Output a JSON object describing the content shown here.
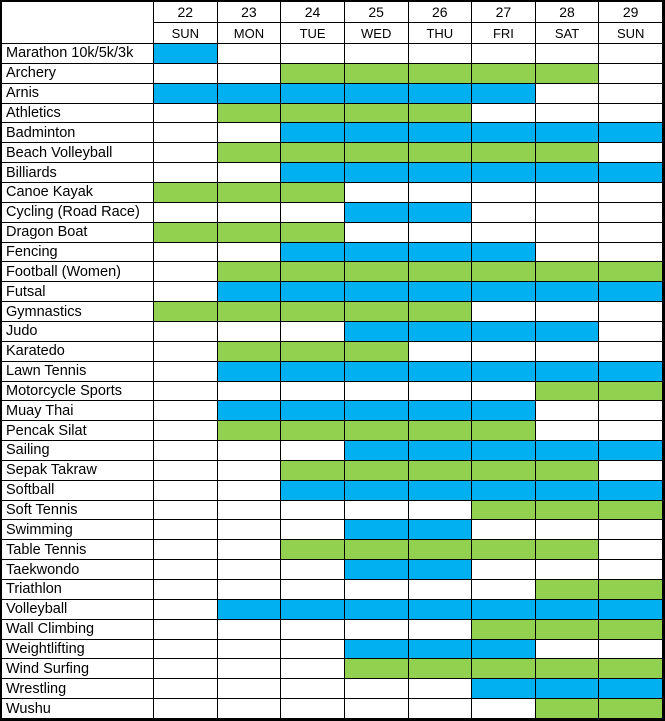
{
  "chart_data": {
    "type": "table",
    "title": "",
    "description_visible": false,
    "legend": "none",
    "colors": {
      "blue": "#00B0F0",
      "green": "#92D050",
      "empty": "#FFFFFF",
      "grid": "#000000"
    },
    "column_dates": [
      "22",
      "23",
      "24",
      "25",
      "26",
      "27",
      "28",
      "29"
    ],
    "column_days": [
      "SUN",
      "MON",
      "TUE",
      "WED",
      "THU",
      "FRI",
      "SAT",
      "SUN"
    ],
    "rows": [
      {
        "label": "Marathon 10k/5k/3k",
        "color": "blue",
        "cells": [
          1,
          0,
          0,
          0,
          0,
          0,
          0,
          0
        ]
      },
      {
        "label": "Archery",
        "color": "green",
        "cells": [
          0,
          0,
          1,
          1,
          1,
          1,
          1,
          0
        ]
      },
      {
        "label": "Arnis",
        "color": "blue",
        "cells": [
          1,
          1,
          1,
          1,
          1,
          1,
          0,
          0
        ]
      },
      {
        "label": "Athletics",
        "color": "green",
        "cells": [
          0,
          1,
          1,
          1,
          1,
          0,
          0,
          0
        ]
      },
      {
        "label": "Badminton",
        "color": "blue",
        "cells": [
          0,
          0,
          1,
          1,
          1,
          1,
          1,
          1
        ]
      },
      {
        "label": "Beach Volleyball",
        "color": "green",
        "cells": [
          0,
          1,
          1,
          1,
          1,
          1,
          1,
          0
        ]
      },
      {
        "label": "Billiards",
        "color": "blue",
        "cells": [
          0,
          0,
          1,
          1,
          1,
          1,
          1,
          1
        ]
      },
      {
        "label": "Canoe Kayak",
        "color": "green",
        "cells": [
          1,
          1,
          1,
          0,
          0,
          0,
          0,
          0
        ]
      },
      {
        "label": "Cycling (Road Race)",
        "color": "blue",
        "cells": [
          0,
          0,
          0,
          1,
          1,
          0,
          0,
          0
        ]
      },
      {
        "label": "Dragon Boat",
        "color": "green",
        "cells": [
          1,
          1,
          1,
          0,
          0,
          0,
          0,
          0
        ]
      },
      {
        "label": "Fencing",
        "color": "blue",
        "cells": [
          0,
          0,
          1,
          1,
          1,
          1,
          0,
          0
        ]
      },
      {
        "label": "Football (Women)",
        "color": "green",
        "cells": [
          0,
          1,
          1,
          1,
          1,
          1,
          1,
          1
        ]
      },
      {
        "label": "Futsal",
        "color": "blue",
        "cells": [
          0,
          1,
          1,
          1,
          1,
          1,
          1,
          1
        ]
      },
      {
        "label": "Gymnastics",
        "color": "green",
        "cells": [
          1,
          1,
          1,
          1,
          1,
          0,
          0,
          0
        ]
      },
      {
        "label": "Judo",
        "color": "blue",
        "cells": [
          0,
          0,
          0,
          1,
          1,
          1,
          1,
          0
        ]
      },
      {
        "label": "Karatedo",
        "color": "green",
        "cells": [
          0,
          1,
          1,
          1,
          0,
          0,
          0,
          0
        ]
      },
      {
        "label": "Lawn Tennis",
        "color": "blue",
        "cells": [
          0,
          1,
          1,
          1,
          1,
          1,
          1,
          1
        ]
      },
      {
        "label": "Motorcycle Sports",
        "color": "green",
        "cells": [
          0,
          0,
          0,
          0,
          0,
          0,
          1,
          1
        ]
      },
      {
        "label": "Muay Thai",
        "color": "blue",
        "cells": [
          0,
          1,
          1,
          1,
          1,
          1,
          0,
          0
        ]
      },
      {
        "label": "Pencak Silat",
        "color": "green",
        "cells": [
          0,
          1,
          1,
          1,
          1,
          1,
          0,
          0
        ]
      },
      {
        "label": "Sailing",
        "color": "blue",
        "cells": [
          0,
          0,
          0,
          1,
          1,
          1,
          1,
          1
        ]
      },
      {
        "label": "Sepak Takraw",
        "color": "green",
        "cells": [
          0,
          0,
          1,
          1,
          1,
          1,
          1,
          0
        ]
      },
      {
        "label": "Softball",
        "color": "blue",
        "cells": [
          0,
          0,
          1,
          1,
          1,
          1,
          1,
          1
        ]
      },
      {
        "label": "Soft Tennis",
        "color": "green",
        "cells": [
          0,
          0,
          0,
          0,
          0,
          1,
          1,
          1
        ]
      },
      {
        "label": "Swimming",
        "color": "blue",
        "cells": [
          0,
          0,
          0,
          1,
          1,
          0,
          0,
          0
        ]
      },
      {
        "label": "Table Tennis",
        "color": "green",
        "cells": [
          0,
          0,
          1,
          1,
          1,
          1,
          1,
          0
        ]
      },
      {
        "label": "Taekwondo",
        "color": "blue",
        "cells": [
          0,
          0,
          0,
          1,
          1,
          0,
          0,
          0
        ]
      },
      {
        "label": "Triathlon",
        "color": "green",
        "cells": [
          0,
          0,
          0,
          0,
          0,
          0,
          1,
          1
        ]
      },
      {
        "label": "Volleyball",
        "color": "blue",
        "cells": [
          0,
          1,
          1,
          1,
          1,
          1,
          1,
          1
        ]
      },
      {
        "label": "Wall Climbing",
        "color": "green",
        "cells": [
          0,
          0,
          0,
          0,
          0,
          1,
          1,
          1
        ]
      },
      {
        "label": "Weightlifting",
        "color": "blue",
        "cells": [
          0,
          0,
          0,
          1,
          1,
          1,
          0,
          0
        ]
      },
      {
        "label": "Wind Surfing",
        "color": "green",
        "cells": [
          0,
          0,
          0,
          1,
          1,
          1,
          1,
          1
        ]
      },
      {
        "label": "Wrestling",
        "color": "blue",
        "cells": [
          0,
          0,
          0,
          0,
          0,
          1,
          1,
          1
        ]
      },
      {
        "label": "Wushu",
        "color": "green",
        "cells": [
          0,
          0,
          0,
          0,
          0,
          0,
          1,
          1
        ]
      }
    ]
  }
}
